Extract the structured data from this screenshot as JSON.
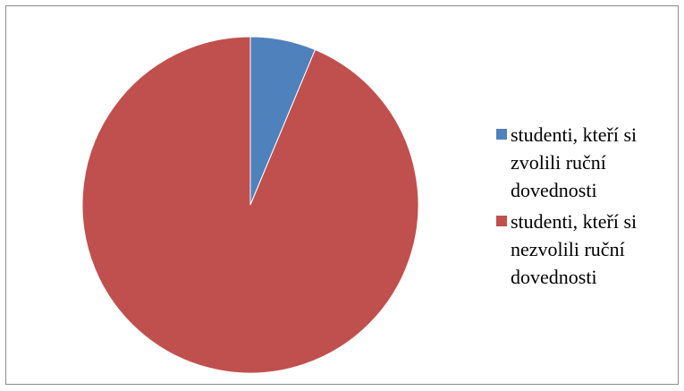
{
  "chart_data": {
    "type": "pie",
    "title": "",
    "start_angle_deg": 0,
    "direction": "clockwise",
    "legend_position": "right",
    "series": [
      {
        "label": "studenti, kteří si\nzvolili ruční\ndovednosti",
        "value": 6.3,
        "color": "#4f81bd"
      },
      {
        "label": "studenti, kteří si\nnezvolili ruční\ndovednosti",
        "value": 93.7,
        "color": "#c0504d"
      }
    ]
  }
}
